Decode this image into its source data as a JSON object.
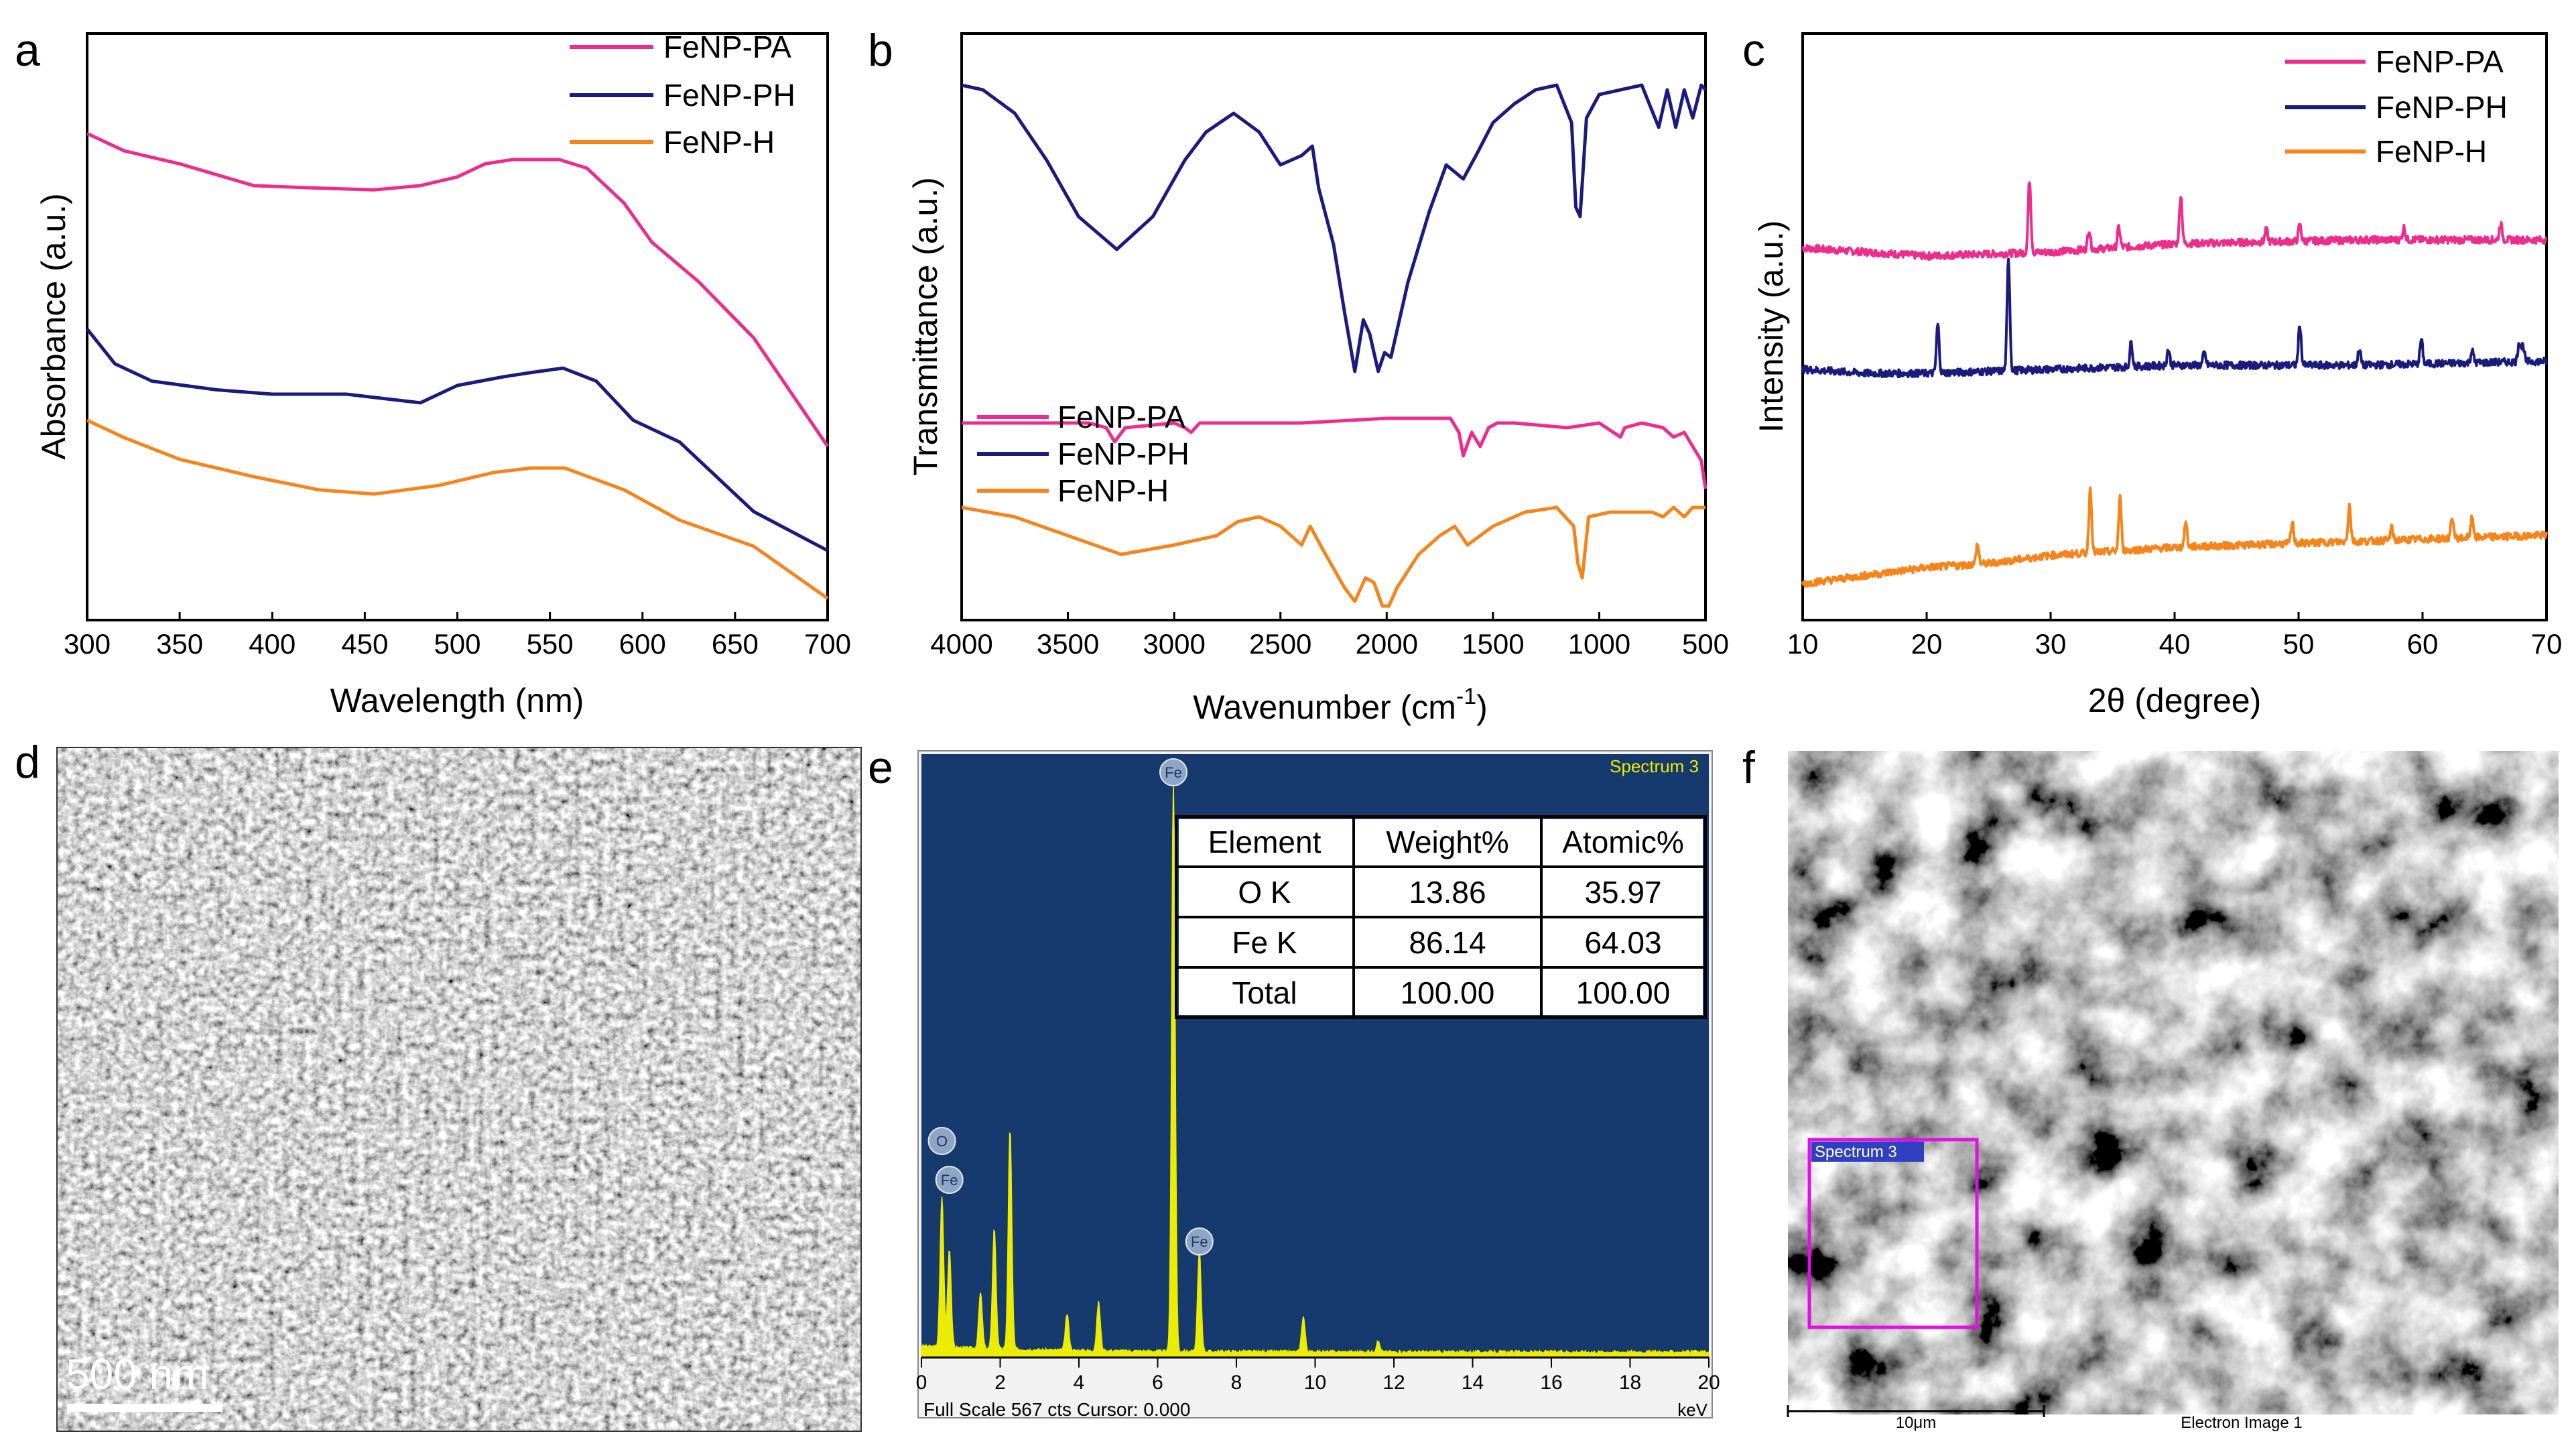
{
  "chart_data": [
    {
      "panel": "a",
      "type": "line",
      "xlabel": "Wavelength (nm)",
      "ylabel": "Absorbance (a.u.)",
      "xlim": [
        300,
        700
      ],
      "ylim": [
        0,
        1.35
      ],
      "y_ticks_shown": false,
      "x_ticks": [
        "300",
        "350",
        "400",
        "450",
        "500",
        "550",
        "600",
        "650",
        "700"
      ],
      "legend_position": "top-right",
      "series": [
        {
          "name": "FeNP-PA",
          "color": "#ee2c8c",
          "x": [
            300,
            320,
            350,
            390,
            420,
            455,
            480,
            500,
            515,
            530,
            555,
            570,
            590,
            605,
            630,
            660,
            700
          ],
          "y": [
            1.12,
            1.08,
            1.05,
            1.0,
            0.995,
            0.99,
            1.0,
            1.02,
            1.05,
            1.06,
            1.06,
            1.04,
            0.96,
            0.87,
            0.78,
            0.65,
            0.4
          ]
        },
        {
          "name": "FeNP-PH",
          "color": "#1b1a7e",
          "x": [
            300,
            315,
            335,
            370,
            400,
            440,
            480,
            500,
            525,
            540,
            557,
            575,
            595,
            620,
            660,
            700
          ],
          "y": [
            0.67,
            0.59,
            0.55,
            0.53,
            0.52,
            0.52,
            0.5,
            0.54,
            0.56,
            0.57,
            0.58,
            0.55,
            0.46,
            0.41,
            0.25,
            0.16
          ]
        },
        {
          "name": "FeNP-H",
          "color": "#f7841a",
          "x": [
            300,
            320,
            350,
            390,
            425,
            455,
            490,
            520,
            540,
            558,
            590,
            620,
            660,
            700
          ],
          "y": [
            0.46,
            0.42,
            0.37,
            0.33,
            0.3,
            0.29,
            0.31,
            0.34,
            0.35,
            0.35,
            0.3,
            0.23,
            0.17,
            0.05
          ]
        }
      ]
    },
    {
      "panel": "b",
      "type": "line",
      "xlabel": "Wavenumber (cm⁻¹)",
      "ylabel": "Transmittance (a.u.)",
      "xlim": [
        4000,
        500
      ],
      "ylim": [
        0,
        1.25
      ],
      "y_ticks_shown": false,
      "x_ticks": [
        "4000",
        "3500",
        "3000",
        "2500",
        "2000",
        "1500",
        "1000",
        "500"
      ],
      "legend_position": "lower-left",
      "series": [
        {
          "name": "FeNP-PA",
          "color": "#ee2c8c",
          "x": [
            4000,
            3400,
            3320,
            3280,
            3230,
            3000,
            2950,
            2920,
            2880,
            2400,
            2000,
            1700,
            1660,
            1640,
            1600,
            1560,
            1520,
            1480,
            1400,
            1150,
            1000,
            900,
            880,
            800,
            700,
            650,
            600,
            560,
            520,
            500
          ],
          "y": [
            0.42,
            0.42,
            0.41,
            0.38,
            0.41,
            0.42,
            0.41,
            0.4,
            0.42,
            0.42,
            0.43,
            0.43,
            0.4,
            0.35,
            0.4,
            0.37,
            0.41,
            0.42,
            0.42,
            0.41,
            0.42,
            0.39,
            0.41,
            0.42,
            0.41,
            0.39,
            0.4,
            0.37,
            0.34,
            0.28
          ]
        },
        {
          "name": "FeNP-PH",
          "color": "#1b1a7e",
          "x": [
            4000,
            3900,
            3750,
            3600,
            3450,
            3270,
            3100,
            2950,
            2850,
            2720,
            2600,
            2500,
            2400,
            2350,
            2320,
            2250,
            2200,
            2150,
            2110,
            2080,
            2040,
            2010,
            1980,
            1900,
            1800,
            1720,
            1640,
            1580,
            1500,
            1400,
            1300,
            1200,
            1130,
            1110,
            1090,
            1060,
            1000,
            900,
            800,
            720,
            680,
            640,
            600,
            560,
            520,
            500
          ],
          "y": [
            1.14,
            1.13,
            1.08,
            0.98,
            0.86,
            0.79,
            0.86,
            0.98,
            1.04,
            1.08,
            1.04,
            0.97,
            0.99,
            1.01,
            0.92,
            0.8,
            0.66,
            0.53,
            0.64,
            0.61,
            0.53,
            0.57,
            0.56,
            0.72,
            0.87,
            0.97,
            0.94,
            0.99,
            1.06,
            1.1,
            1.13,
            1.14,
            1.06,
            0.88,
            0.86,
            1.07,
            1.12,
            1.13,
            1.14,
            1.05,
            1.13,
            1.05,
            1.13,
            1.07,
            1.14,
            1.13
          ]
        },
        {
          "name": "FeNP-H",
          "color": "#f7841a",
          "x": [
            4000,
            3750,
            3500,
            3250,
            3000,
            2800,
            2700,
            2600,
            2500,
            2400,
            2360,
            2300,
            2200,
            2150,
            2100,
            2060,
            2020,
            1990,
            1950,
            1850,
            1750,
            1680,
            1620,
            1500,
            1350,
            1200,
            1120,
            1100,
            1080,
            1050,
            950,
            850,
            750,
            700,
            650,
            600,
            560,
            520,
            500
          ],
          "y": [
            0.24,
            0.22,
            0.18,
            0.14,
            0.16,
            0.18,
            0.21,
            0.22,
            0.2,
            0.16,
            0.2,
            0.15,
            0.07,
            0.04,
            0.09,
            0.08,
            0.03,
            0.03,
            0.07,
            0.14,
            0.18,
            0.2,
            0.16,
            0.2,
            0.23,
            0.24,
            0.2,
            0.12,
            0.09,
            0.22,
            0.23,
            0.23,
            0.23,
            0.22,
            0.24,
            0.22,
            0.24,
            0.24,
            0.24
          ]
        }
      ]
    },
    {
      "panel": "c",
      "type": "line",
      "xlabel": "2θ (degree)",
      "ylabel": "Intensity (a.u.)",
      "xlim": [
        10,
        70
      ],
      "ylim": [
        0,
        1.45
      ],
      "y_ticks_shown": false,
      "x_ticks": [
        "10",
        "20",
        "30",
        "40",
        "50",
        "60",
        "70"
      ],
      "legend_position": "top-right",
      "series": [
        {
          "name": "FeNP-PA",
          "color": "#ee2c8c",
          "baseline": [
            [
              10,
              0.92
            ],
            [
              15,
              0.91
            ],
            [
              20,
              0.9
            ],
            [
              30,
              0.91
            ],
            [
              40,
              0.93
            ],
            [
              55,
              0.94
            ],
            [
              70,
              0.94
            ]
          ],
          "peaks": [
            [
              28.3,
              0.18
            ],
            [
              33.1,
              0.05
            ],
            [
              35.5,
              0.05
            ],
            [
              40.5,
              0.12
            ],
            [
              47.4,
              0.03
            ],
            [
              50.1,
              0.04
            ],
            [
              58.5,
              0.03
            ],
            [
              66.3,
              0.04
            ]
          ]
        },
        {
          "name": "FeNP-PH",
          "color": "#1b1a7e",
          "baseline": [
            [
              10,
              0.62
            ],
            [
              15,
              0.61
            ],
            [
              20,
              0.61
            ],
            [
              30,
              0.62
            ],
            [
              40,
              0.63
            ],
            [
              55,
              0.63
            ],
            [
              70,
              0.64
            ]
          ],
          "peaks": [
            [
              20.9,
              0.12
            ],
            [
              26.6,
              0.28
            ],
            [
              36.5,
              0.06
            ],
            [
              39.5,
              0.04
            ],
            [
              42.4,
              0.03
            ],
            [
              50.1,
              0.1
            ],
            [
              54.9,
              0.04
            ],
            [
              59.9,
              0.06
            ],
            [
              64.0,
              0.03
            ],
            [
              67.8,
              0.05
            ],
            [
              68.1,
              0.04
            ]
          ]
        },
        {
          "name": "FeNP-H",
          "color": "#f7841a",
          "baseline": [
            [
              10,
              0.09
            ],
            [
              15,
              0.11
            ],
            [
              20,
              0.13
            ],
            [
              25,
              0.14
            ],
            [
              30,
              0.16
            ],
            [
              35,
              0.17
            ],
            [
              40,
              0.18
            ],
            [
              50,
              0.19
            ],
            [
              60,
              0.2
            ],
            [
              70,
              0.21
            ]
          ],
          "peaks": [
            [
              24.1,
              0.05
            ],
            [
              33.2,
              0.16
            ],
            [
              35.6,
              0.13
            ],
            [
              40.9,
              0.06
            ],
            [
              49.5,
              0.05
            ],
            [
              54.1,
              0.09
            ],
            [
              57.5,
              0.03
            ],
            [
              62.4,
              0.05
            ],
            [
              64.0,
              0.05
            ]
          ]
        }
      ]
    },
    {
      "panel": "e",
      "type": "bar",
      "title": "Spectrum 3",
      "xlabel": "keV",
      "xlim": [
        0,
        20
      ],
      "x_ticks": [
        "0",
        "2",
        "4",
        "6",
        "8",
        "10",
        "12",
        "14",
        "16",
        "18",
        "20"
      ],
      "footer": "Full Scale 567 cts Cursor: 0.000",
      "peak_labels": [
        {
          "label": "O",
          "kev": 0.52
        },
        {
          "label": "Fe",
          "kev": 0.71
        },
        {
          "label": "Fe",
          "kev": 6.4
        },
        {
          "label": "Fe",
          "kev": 7.06
        }
      ],
      "peaks_kev": [
        0.52,
        0.71,
        1.5,
        1.85,
        2.25,
        3.7,
        4.5,
        6.4,
        7.06,
        9.7,
        11.6
      ],
      "peaks_cts": [
        150,
        98,
        55,
        120,
        220,
        36,
        48,
        567,
        100,
        35,
        10
      ],
      "table": {
        "columns": [
          "Element",
          "Weight%",
          "Atomic%"
        ],
        "rows": [
          [
            "O K",
            "13.86",
            "35.97"
          ],
          [
            "Fe K",
            "86.14",
            "64.03"
          ],
          [
            "Total",
            "100.00",
            "100.00"
          ]
        ]
      }
    }
  ],
  "panel_labels": {
    "a": "a",
    "b": "b",
    "c": "c",
    "d": "d",
    "e": "e",
    "f": "f"
  },
  "panel_d": {
    "scale_label": "500 nm"
  },
  "panel_f": {
    "box_label": "Spectrum 3",
    "scale_label": "10μm",
    "image_label": "Electron Image 1"
  },
  "colors": {
    "pink": "#ee2c8c",
    "navy": "#1b1a7e",
    "orange": "#f7841a",
    "eds_bg": "#173a6e",
    "eds_fill": "#ecec00"
  }
}
